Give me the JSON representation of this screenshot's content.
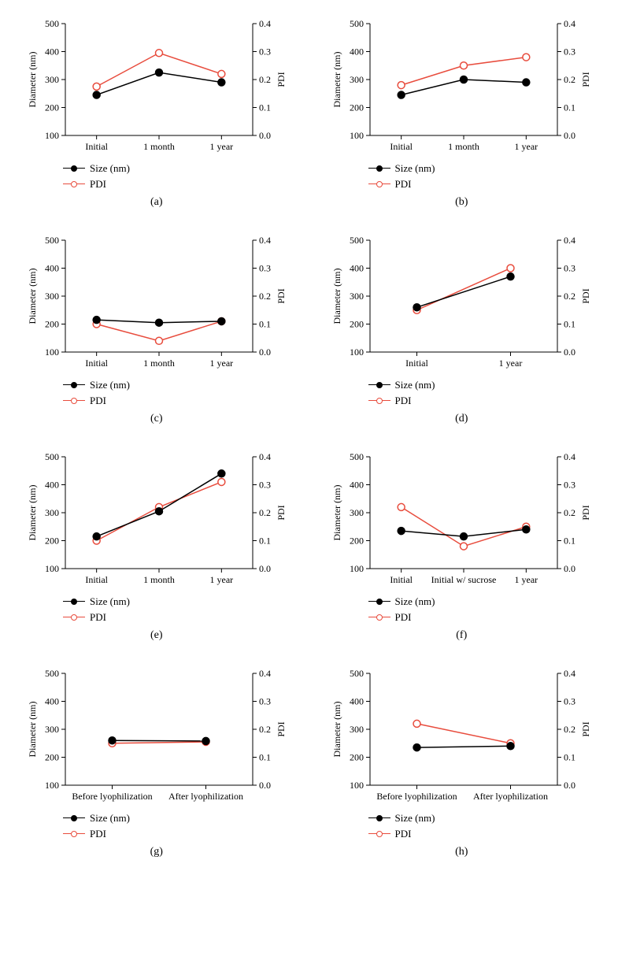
{
  "global": {
    "left_axis_label": "Diameter (nm)",
    "right_axis_label": "PDI",
    "left_ylim": [
      100,
      500
    ],
    "left_ticks": [
      100,
      200,
      300,
      400,
      500
    ],
    "right_ylim": [
      0.0,
      0.4
    ],
    "right_ticks": [
      0.0,
      0.1,
      0.2,
      0.3,
      0.4
    ],
    "colors": {
      "size_line": "#000000",
      "size_fill": "#000000",
      "pdi_line": "#e84c3d",
      "pdi_fill": "#ffffff",
      "axis": "#000000",
      "background": "#ffffff"
    },
    "legend": {
      "size": "Size (nm)",
      "pdi": "PDI"
    },
    "marker_radius": 4.5,
    "line_width": 1.5,
    "axis_fontsize": 13,
    "tick_fontsize": 12
  },
  "panels": [
    {
      "id": "a",
      "label": "(a)",
      "categories": [
        "Initial",
        "1 month",
        "1 year"
      ],
      "size": [
        245,
        325,
        290
      ],
      "pdi": [
        0.175,
        0.295,
        0.22
      ]
    },
    {
      "id": "b",
      "label": "(b)",
      "categories": [
        "Initial",
        "1 month",
        "1 year"
      ],
      "size": [
        245,
        300,
        290
      ],
      "pdi": [
        0.18,
        0.25,
        0.28
      ]
    },
    {
      "id": "c",
      "label": "(c)",
      "categories": [
        "Initial",
        "1 month",
        "1 year"
      ],
      "size": [
        215,
        205,
        210
      ],
      "pdi": [
        0.1,
        0.04,
        0.11
      ]
    },
    {
      "id": "d",
      "label": "(d)",
      "categories": [
        "Initial",
        "1 year"
      ],
      "size": [
        260,
        370
      ],
      "pdi": [
        0.15,
        0.3
      ]
    },
    {
      "id": "e",
      "label": "(e)",
      "categories": [
        "Initial",
        "1 month",
        "1 year"
      ],
      "size": [
        215,
        305,
        440
      ],
      "pdi": [
        0.1,
        0.22,
        0.31
      ]
    },
    {
      "id": "f",
      "label": "(f)",
      "categories": [
        "Initial",
        "Initial w/ sucrose",
        "1 year"
      ],
      "size": [
        235,
        215,
        240
      ],
      "pdi": [
        0.22,
        0.08,
        0.15
      ]
    },
    {
      "id": "g",
      "label": "(g)",
      "categories": [
        "Before lyophilization",
        "After lyophilization"
      ],
      "size": [
        260,
        258
      ],
      "pdi": [
        0.15,
        0.155
      ]
    },
    {
      "id": "h",
      "label": "(h)",
      "categories": [
        "Before lyophilization",
        "After lyophilization"
      ],
      "size": [
        235,
        240
      ],
      "pdi": [
        0.22,
        0.15
      ]
    }
  ]
}
